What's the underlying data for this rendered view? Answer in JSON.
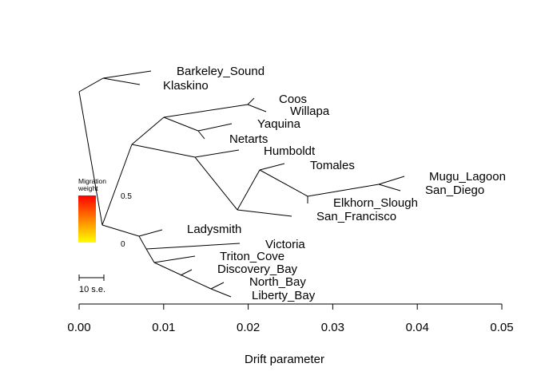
{
  "tree": {
    "tips": [
      "Barkeley_Sound",
      "Klaskino",
      "Coos",
      "Willapa",
      "Yaquina",
      "Netarts",
      "Humboldt",
      "Tomales",
      "Mugu_Lagoon",
      "San_Diego",
      "Elkhorn_Slough",
      "San_Francisco",
      "Ladysmith",
      "Victoria",
      "Triton_Cove",
      "Discovery_Bay",
      "North_Bay",
      "Liberty_Bay"
    ]
  },
  "legend": {
    "title_line1": "Migration",
    "title_line2": "weight",
    "max_label": "0.5",
    "min_label": "0",
    "gradient_top": "#ff0000",
    "gradient_bottom": "#ffff00"
  },
  "scale_bar": {
    "label": "10 s.e."
  },
  "axis": {
    "label": "Drift parameter",
    "ticks": [
      "0.00",
      "0.01",
      "0.02",
      "0.03",
      "0.04",
      "0.05"
    ],
    "range": [
      0,
      0.05
    ]
  }
}
